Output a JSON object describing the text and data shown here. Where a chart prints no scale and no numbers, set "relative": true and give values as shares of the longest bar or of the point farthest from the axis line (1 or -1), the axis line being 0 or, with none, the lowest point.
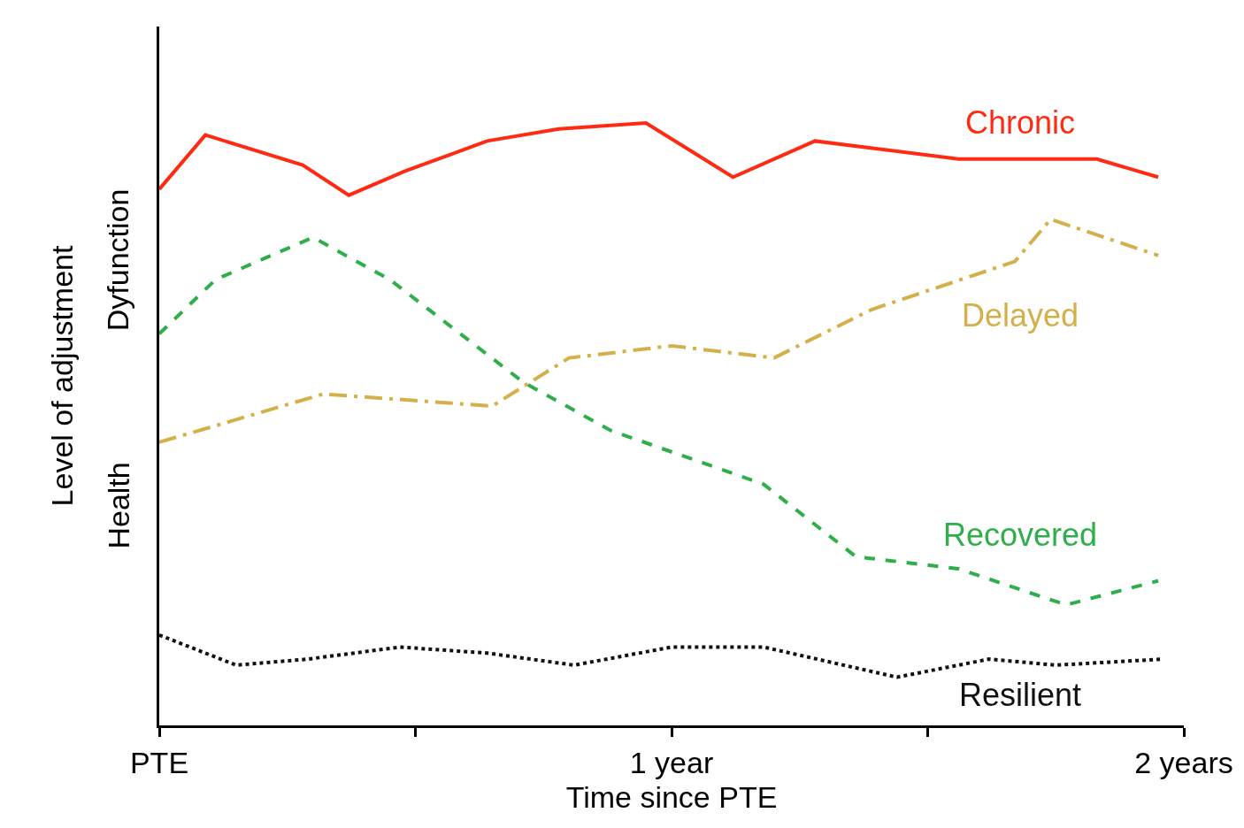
{
  "chart_data": {
    "type": "line",
    "relative": true,
    "xlabel": "Time since PTE",
    "ylabel": "Level of adjustment",
    "annotations": [
      "Health",
      "Dyfunction"
    ],
    "xlim": [
      0,
      2
    ],
    "xticks": [
      {
        "value": 0,
        "label": "PTE"
      },
      {
        "value": 0.5,
        "label": null
      },
      {
        "value": 1,
        "label": "1 year"
      },
      {
        "value": 1.5,
        "label": null
      },
      {
        "value": 2,
        "label": "2 years"
      }
    ],
    "marker": "none",
    "series": [
      {
        "name": "Chronic",
        "color": "#ff2a12",
        "line_style": "solid",
        "x": [
          0,
          0.09,
          0.28,
          0.37,
          0.48,
          0.64,
          0.78,
          0.95,
          1.12,
          1.28,
          1.56,
          1.83,
          1.95
        ],
        "values": [
          0.89,
          0.98,
          0.93,
          0.88,
          0.92,
          0.97,
          0.99,
          1.0,
          0.91,
          0.97,
          0.94,
          0.94,
          0.91
        ]
      },
      {
        "name": "Delayed",
        "color": "#d4b04a",
        "line_style": "dashdot",
        "x": [
          0,
          0.32,
          0.65,
          0.8,
          1.0,
          1.2,
          1.39,
          1.67,
          1.74,
          1.95
        ],
        "values": [
          0.47,
          0.55,
          0.53,
          0.61,
          0.63,
          0.61,
          0.69,
          0.77,
          0.84,
          0.78
        ]
      },
      {
        "name": "Recovered",
        "color": "#2fae4a",
        "line_style": "dashed",
        "x": [
          0,
          0.11,
          0.3,
          0.45,
          0.71,
          0.88,
          1.18,
          1.36,
          1.56,
          1.77,
          1.95
        ],
        "values": [
          0.65,
          0.74,
          0.81,
          0.74,
          0.57,
          0.49,
          0.4,
          0.28,
          0.26,
          0.2,
          0.24
        ]
      },
      {
        "name": "Resilient",
        "color": "#111111",
        "line_style": "dotted",
        "x": [
          0,
          0.15,
          0.29,
          0.47,
          0.64,
          0.81,
          1.0,
          1.18,
          1.44,
          1.62,
          1.75,
          1.96
        ],
        "values": [
          0.15,
          0.1,
          0.11,
          0.13,
          0.12,
          0.1,
          0.13,
          0.13,
          0.08,
          0.11,
          0.1,
          0.11
        ]
      }
    ]
  }
}
